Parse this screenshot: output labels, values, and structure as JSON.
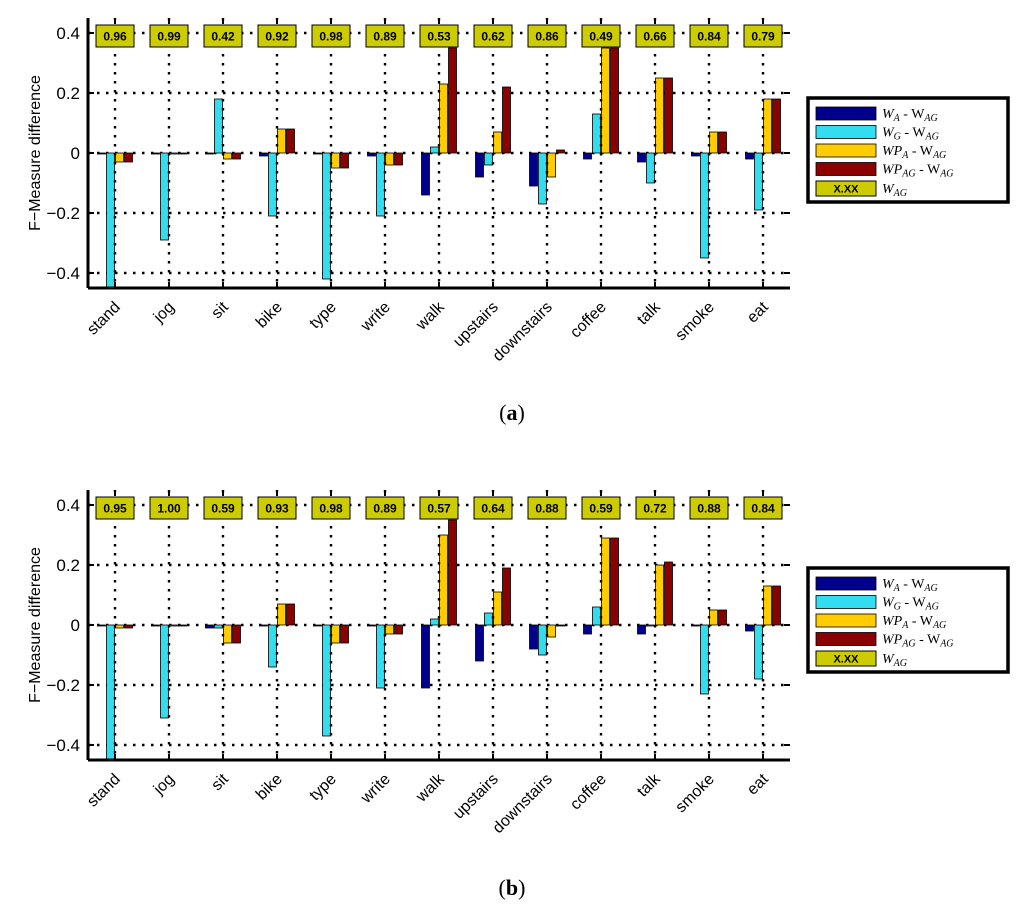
{
  "colors": {
    "series": [
      "#00008b",
      "#33ddf0",
      "#ffcc00",
      "#8b0000"
    ],
    "wag_box_fill": "#cccc00",
    "grid": "#000000"
  },
  "chart_data": [
    {
      "type": "bar",
      "panel_label": "a",
      "ylabel": "F−Measure difference",
      "ylim": [
        -0.45,
        0.45
      ],
      "yticks": [
        -0.4,
        -0.2,
        0,
        0.2,
        0.4
      ],
      "ytick_labels": [
        "−0.4",
        "−0.2",
        "0",
        "0.2",
        "0.4"
      ],
      "grid": true,
      "legend_position": "right",
      "categories": [
        "stand",
        "jog",
        "sit",
        "bike",
        "type",
        "write",
        "walk",
        "upstairs",
        "downstairs",
        "coffee",
        "talk",
        "smoke",
        "eat"
      ],
      "series": [
        {
          "name": "W_A - W_AG",
          "legend_main": "W",
          "legend_sub": "A",
          "legend_rest": " - W",
          "legend_rest_sub": "AG",
          "values": [
            0,
            0,
            0,
            -0.01,
            0,
            -0.01,
            -0.14,
            -0.08,
            -0.11,
            -0.02,
            -0.03,
            -0.01,
            -0.02
          ]
        },
        {
          "name": "W_G - W_AG",
          "legend_main": "W",
          "legend_sub": "G",
          "legend_rest": " - W",
          "legend_rest_sub": "AG",
          "values": [
            -0.45,
            -0.29,
            0.18,
            -0.21,
            -0.42,
            -0.21,
            0.02,
            -0.04,
            -0.17,
            0.13,
            -0.1,
            -0.35,
            -0.19
          ]
        },
        {
          "name": "WP_A - W_AG",
          "legend_main": "WP",
          "legend_sub": "A",
          "legend_rest": " - W",
          "legend_rest_sub": "AG",
          "values": [
            -0.03,
            0,
            -0.02,
            0.08,
            -0.05,
            -0.04,
            0.23,
            0.07,
            -0.08,
            0.35,
            0.25,
            0.07,
            0.18
          ]
        },
        {
          "name": "WP_AG - W_AG",
          "legend_main": "WP",
          "legend_sub": "AG",
          "legend_rest": " - W",
          "legend_rest_sub": "AG",
          "values": [
            -0.03,
            0,
            -0.02,
            0.08,
            -0.05,
            -0.04,
            0.35,
            0.22,
            0.01,
            0.35,
            0.25,
            0.07,
            0.18
          ]
        }
      ],
      "wag_values": [
        "0.96",
        "0.99",
        "0.42",
        "0.92",
        "0.98",
        "0.89",
        "0.53",
        "0.62",
        "0.86",
        "0.49",
        "0.66",
        "0.84",
        "0.79"
      ],
      "wag_legend": {
        "box_text": "X.XX",
        "label_main": "W",
        "label_sub": "AG"
      }
    },
    {
      "type": "bar",
      "panel_label": "b",
      "ylabel": "F−Measure difference",
      "ylim": [
        -0.45,
        0.45
      ],
      "yticks": [
        -0.4,
        -0.2,
        0,
        0.2,
        0.4
      ],
      "ytick_labels": [
        "−0.4",
        "−0.2",
        "0",
        "0.2",
        "0.4"
      ],
      "grid": true,
      "legend_position": "right",
      "categories": [
        "stand",
        "jog",
        "sit",
        "bike",
        "type",
        "write",
        "walk",
        "upstairs",
        "downstairs",
        "coffee",
        "talk",
        "smoke",
        "eat"
      ],
      "series": [
        {
          "name": "W_A - W_AG",
          "legend_main": "W",
          "legend_sub": "A",
          "legend_rest": " - W",
          "legend_rest_sub": "AG",
          "values": [
            0,
            0,
            -0.01,
            0,
            0,
            0,
            -0.21,
            -0.12,
            -0.08,
            -0.03,
            -0.03,
            0,
            -0.02
          ]
        },
        {
          "name": "W_G - W_AG",
          "legend_main": "W",
          "legend_sub": "G",
          "legend_rest": " - W",
          "legend_rest_sub": "AG",
          "values": [
            -0.45,
            -0.31,
            -0.01,
            -0.14,
            -0.37,
            -0.21,
            0.02,
            0.04,
            -0.1,
            0.06,
            0,
            -0.23,
            -0.18
          ]
        },
        {
          "name": "WP_A - W_AG",
          "legend_main": "WP",
          "legend_sub": "A",
          "legend_rest": " - W",
          "legend_rest_sub": "AG",
          "values": [
            -0.01,
            0,
            -0.06,
            0.07,
            -0.06,
            -0.03,
            0.3,
            0.11,
            -0.04,
            0.29,
            0.2,
            0.05,
            0.13
          ]
        },
        {
          "name": "WP_AG - W_AG",
          "legend_main": "WP",
          "legend_sub": "AG",
          "legend_rest": " - W",
          "legend_rest_sub": "AG",
          "values": [
            -0.01,
            0,
            -0.06,
            0.07,
            -0.06,
            -0.03,
            0.35,
            0.19,
            0,
            0.29,
            0.21,
            0.05,
            0.13
          ]
        }
      ],
      "wag_values": [
        "0.95",
        "1.00",
        "0.59",
        "0.93",
        "0.98",
        "0.89",
        "0.57",
        "0.64",
        "0.88",
        "0.59",
        "0.72",
        "0.88",
        "0.84"
      ],
      "wag_legend": {
        "box_text": "X.XX",
        "label_main": "W",
        "label_sub": "AG"
      }
    }
  ]
}
